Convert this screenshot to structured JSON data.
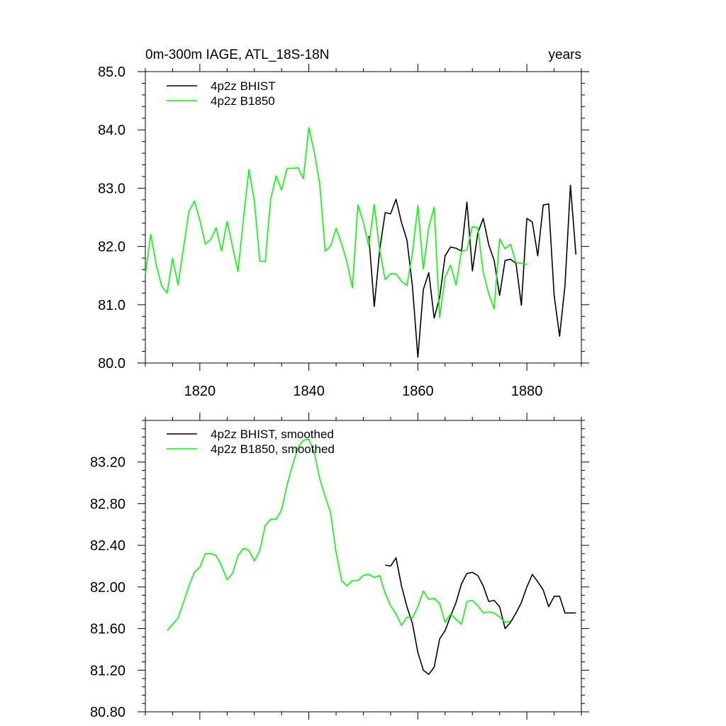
{
  "chart_data": [
    {
      "type": "line",
      "title": "0m-300m IAGE, ATL_18S-18N",
      "units": "years",
      "xlim": [
        1810,
        1890
      ],
      "ylim": [
        80.0,
        85.0
      ],
      "x_ticks": [
        1820,
        1840,
        1860,
        1880
      ],
      "y_ticks": [
        80.0,
        81.0,
        82.0,
        83.0,
        84.0,
        85.0
      ],
      "y_tick_labels": [
        "80.0",
        "81.0",
        "82.0",
        "83.0",
        "84.0",
        "85.0"
      ],
      "legend_position": "top-left",
      "series": [
        {
          "name": "4p2z BHIST",
          "color": "#000000",
          "x": [
            1851,
            1852,
            1853,
            1854,
            1855,
            1856,
            1857,
            1858,
            1859,
            1860,
            1861,
            1862,
            1863,
            1864,
            1865,
            1866,
            1867,
            1868,
            1869,
            1870,
            1871,
            1872,
            1873,
            1874,
            1875,
            1876,
            1877,
            1878,
            1879,
            1880,
            1881,
            1882,
            1883,
            1884,
            1885,
            1886,
            1887,
            1888,
            1889
          ],
          "y": [
            82.18,
            80.97,
            81.95,
            82.58,
            82.56,
            82.81,
            82.41,
            82.11,
            81.32,
            80.1,
            81.26,
            81.55,
            80.77,
            81.12,
            81.84,
            81.99,
            81.97,
            81.92,
            82.76,
            81.58,
            82.23,
            82.48,
            82.03,
            81.76,
            81.16,
            81.76,
            81.78,
            81.71,
            80.99,
            82.48,
            82.42,
            81.84,
            82.71,
            82.73,
            81.16,
            80.46,
            81.33,
            83.05,
            81.86
          ]
        },
        {
          "name": "4p2z B1850",
          "color": "#00ff00",
          "x": [
            1810,
            1811,
            1812,
            1813,
            1814,
            1815,
            1816,
            1817,
            1818,
            1819,
            1820,
            1821,
            1822,
            1823,
            1824,
            1825,
            1826,
            1827,
            1828,
            1829,
            1830,
            1831,
            1832,
            1833,
            1834,
            1835,
            1836,
            1837,
            1838,
            1839,
            1840,
            1841,
            1842,
            1843,
            1844,
            1845,
            1846,
            1847,
            1848,
            1849,
            1850,
            1851,
            1852,
            1853,
            1854,
            1855,
            1856,
            1857,
            1858,
            1859,
            1860,
            1861,
            1862,
            1863,
            1864,
            1865,
            1866,
            1867,
            1868,
            1869,
            1870,
            1871,
            1872,
            1873,
            1874,
            1875,
            1876,
            1877,
            1878,
            1879,
            1880
          ],
          "y": [
            81.52,
            82.21,
            81.68,
            81.32,
            81.2,
            81.8,
            81.34,
            81.97,
            82.6,
            82.78,
            82.45,
            82.04,
            82.12,
            82.32,
            81.92,
            82.43,
            82.0,
            81.57,
            82.48,
            83.32,
            82.78,
            81.75,
            81.74,
            82.81,
            83.21,
            82.97,
            83.34,
            83.34,
            83.35,
            83.16,
            84.04,
            83.62,
            83.07,
            81.92,
            82.01,
            82.31,
            82.05,
            81.73,
            81.29,
            82.71,
            82.42,
            82.0,
            82.72,
            81.93,
            81.43,
            81.53,
            81.53,
            81.4,
            81.33,
            81.88,
            82.7,
            81.61,
            82.33,
            82.67,
            80.78,
            81.47,
            81.68,
            81.34,
            81.92,
            81.94,
            82.34,
            82.32,
            81.56,
            81.19,
            80.93,
            82.13,
            81.96,
            82.04,
            81.72,
            81.71,
            81.69
          ]
        }
      ]
    },
    {
      "type": "line",
      "xlim": [
        1810,
        1890
      ],
      "ylim": [
        80.8,
        83.6
      ],
      "x_ticks": [
        1820,
        1840,
        1860,
        1880
      ],
      "y_ticks": [
        80.8,
        81.2,
        81.6,
        82.0,
        82.4,
        82.8,
        83.2
      ],
      "y_tick_labels": [
        "80.80",
        "81.20",
        "81.60",
        "82.00",
        "82.40",
        "82.80",
        "83.20"
      ],
      "legend_position": "top-left",
      "series": [
        {
          "name": "4p2z BHIST, smoothed",
          "color": "#000000",
          "x": [
            1854,
            1855,
            1856,
            1857,
            1858,
            1859,
            1860,
            1861,
            1862,
            1863,
            1864,
            1865,
            1866,
            1867,
            1868,
            1869,
            1870,
            1871,
            1872,
            1873,
            1874,
            1875,
            1876,
            1877,
            1878,
            1879,
            1880,
            1881,
            1882,
            1883,
            1884,
            1885,
            1886,
            1887,
            1888,
            1889
          ],
          "y": [
            82.21,
            82.2,
            82.28,
            82.01,
            81.81,
            81.65,
            81.37,
            81.2,
            81.16,
            81.23,
            81.5,
            81.58,
            81.72,
            81.85,
            82.03,
            82.13,
            82.14,
            82.11,
            82.01,
            81.86,
            81.87,
            81.81,
            81.6,
            81.66,
            81.75,
            81.85,
            82.0,
            82.12,
            82.05,
            81.97,
            81.81,
            81.91,
            81.91,
            81.75,
            81.75,
            81.75
          ]
        },
        {
          "name": "4p2z B1850, smoothed",
          "color": "#00ff00",
          "x": [
            1814,
            1815,
            1816,
            1817,
            1818,
            1819,
            1820,
            1821,
            1822,
            1823,
            1824,
            1825,
            1826,
            1827,
            1828,
            1829,
            1830,
            1831,
            1832,
            1833,
            1834,
            1835,
            1836,
            1837,
            1838,
            1839,
            1840,
            1841,
            1842,
            1843,
            1844,
            1845,
            1846,
            1847,
            1848,
            1849,
            1850,
            1851,
            1852,
            1853,
            1854,
            1855,
            1856,
            1857,
            1858,
            1859,
            1860,
            1861,
            1862,
            1863,
            1864,
            1865,
            1866,
            1867,
            1868,
            1869,
            1870,
            1871,
            1872,
            1873,
            1874,
            1875,
            1876,
            1877
          ],
          "y": [
            81.58,
            81.64,
            81.7,
            81.85,
            82.01,
            82.14,
            82.19,
            82.32,
            82.32,
            82.3,
            82.2,
            82.07,
            82.13,
            82.3,
            82.37,
            82.35,
            82.25,
            82.35,
            82.59,
            82.65,
            82.65,
            82.74,
            82.98,
            83.17,
            83.34,
            83.41,
            83.42,
            83.29,
            83.04,
            82.87,
            82.71,
            82.33,
            82.06,
            82.01,
            82.06,
            82.06,
            82.11,
            82.12,
            82.09,
            82.11,
            81.94,
            81.82,
            81.74,
            81.63,
            81.71,
            81.7,
            81.81,
            81.96,
            81.88,
            81.89,
            81.84,
            81.66,
            81.74,
            81.69,
            81.64,
            81.86,
            81.87,
            81.82,
            81.75,
            81.76,
            81.75,
            81.71,
            81.66,
            81.67
          ]
        }
      ]
    }
  ]
}
